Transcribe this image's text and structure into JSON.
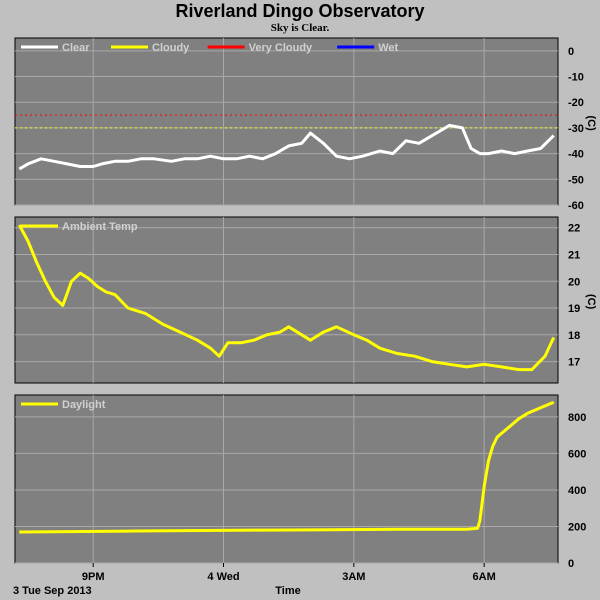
{
  "title": "Riverland Dingo Observatory",
  "subtitle": "Sky is Clear.",
  "colors": {
    "page": "#c0c0c0",
    "plot": "#808080",
    "grid": "#a8a8a8"
  },
  "x_axis": {
    "label": "Time",
    "date_label": "3 Tue Sep 2013",
    "ticks": [
      {
        "t": 2,
        "label": "9PM"
      },
      {
        "t": 5,
        "label": "4 Wed"
      },
      {
        "t": 8,
        "label": "3AM"
      },
      {
        "t": 11,
        "label": "6AM"
      }
    ],
    "range": [
      0.2,
      12.7
    ]
  },
  "chart_data": [
    {
      "type": "line",
      "ylabel": "(C)",
      "ylim": [
        -60,
        5
      ],
      "yticks": [
        0,
        -10,
        -20,
        -30,
        -40,
        -50,
        -60
      ],
      "legend": [
        {
          "name": "Clear",
          "color": "#ffffff"
        },
        {
          "name": "Cloudy",
          "color": "#ffff00"
        },
        {
          "name": "Very Cloudy",
          "color": "#ff0000"
        },
        {
          "name": "Wet",
          "color": "#0000ff"
        }
      ],
      "thresholds": [
        {
          "value": -25,
          "color": "#ff0000"
        },
        {
          "value": -30,
          "color": "#ffff00"
        }
      ],
      "series": [
        {
          "name": "Clear",
          "color": "#ffffff",
          "x": [
            0.3,
            0.5,
            0.8,
            1.1,
            1.4,
            1.7,
            2.0,
            2.2,
            2.5,
            2.8,
            3.1,
            3.4,
            3.8,
            4.1,
            4.4,
            4.7,
            5.0,
            5.3,
            5.6,
            5.9,
            6.2,
            6.5,
            6.8,
            7.0,
            7.3,
            7.6,
            7.9,
            8.2,
            8.6,
            8.9,
            9.2,
            9.5,
            9.9,
            10.2,
            10.5,
            10.7,
            10.9,
            11.1,
            11.4,
            11.7,
            12.0,
            12.3,
            12.6
          ],
          "y": [
            -46,
            -44,
            -42,
            -43,
            -44,
            -45,
            -45,
            -44,
            -43,
            -43,
            -42,
            -42,
            -43,
            -42,
            -42,
            -41,
            -42,
            -42,
            -41,
            -42,
            -40,
            -37,
            -36,
            -32,
            -36,
            -41,
            -42,
            -41,
            -39,
            -40,
            -35,
            -36,
            -32,
            -29,
            -30,
            -38,
            -40,
            -40,
            -39,
            -40,
            -39,
            -38,
            -33
          ]
        }
      ]
    },
    {
      "type": "line",
      "ylabel": "(C)",
      "ylim": [
        16.2,
        22.4
      ],
      "yticks": [
        22,
        21,
        20,
        19,
        18,
        17
      ],
      "legend": [
        {
          "name": "Ambient Temp",
          "color": "#ffff00"
        }
      ],
      "series": [
        {
          "name": "Ambient Temp",
          "color": "#ffff00",
          "x": [
            0.3,
            0.5,
            0.7,
            0.9,
            1.1,
            1.3,
            1.5,
            1.7,
            1.9,
            2.1,
            2.3,
            2.5,
            2.8,
            3.2,
            3.6,
            4.0,
            4.4,
            4.7,
            4.9,
            5.1,
            5.4,
            5.7,
            6.0,
            6.3,
            6.5,
            6.8,
            7.0,
            7.3,
            7.6,
            8.0,
            8.3,
            8.6,
            9.0,
            9.4,
            9.8,
            10.2,
            10.6,
            11.0,
            11.4,
            11.8,
            12.1,
            12.4,
            12.6
          ],
          "y": [
            22.1,
            21.5,
            20.7,
            20.0,
            19.4,
            19.1,
            20.0,
            20.3,
            20.1,
            19.8,
            19.6,
            19.5,
            19.0,
            18.8,
            18.4,
            18.1,
            17.8,
            17.5,
            17.2,
            17.7,
            17.7,
            17.8,
            18.0,
            18.1,
            18.3,
            18.0,
            17.8,
            18.1,
            18.3,
            18.0,
            17.8,
            17.5,
            17.3,
            17.2,
            17.0,
            16.9,
            16.8,
            16.9,
            16.8,
            16.7,
            16.7,
            17.2,
            17.9
          ]
        }
      ]
    },
    {
      "type": "line",
      "ylim": [
        0,
        920
      ],
      "yticks": [
        800,
        600,
        400,
        200,
        0
      ],
      "legend": [
        {
          "name": "Daylight",
          "color": "#ffff00"
        }
      ],
      "series": [
        {
          "name": "Daylight",
          "color": "#ffff00",
          "x": [
            0.3,
            1.5,
            3.0,
            4.5,
            6.0,
            7.5,
            9.0,
            10.0,
            10.6,
            10.85,
            10.9,
            11.0,
            11.1,
            11.2,
            11.3,
            11.5,
            11.8,
            12.0,
            12.3,
            12.6
          ],
          "y": [
            170,
            172,
            175,
            178,
            180,
            182,
            185,
            185,
            185,
            190,
            230,
            420,
            560,
            640,
            690,
            730,
            790,
            820,
            850,
            880
          ]
        }
      ]
    }
  ]
}
